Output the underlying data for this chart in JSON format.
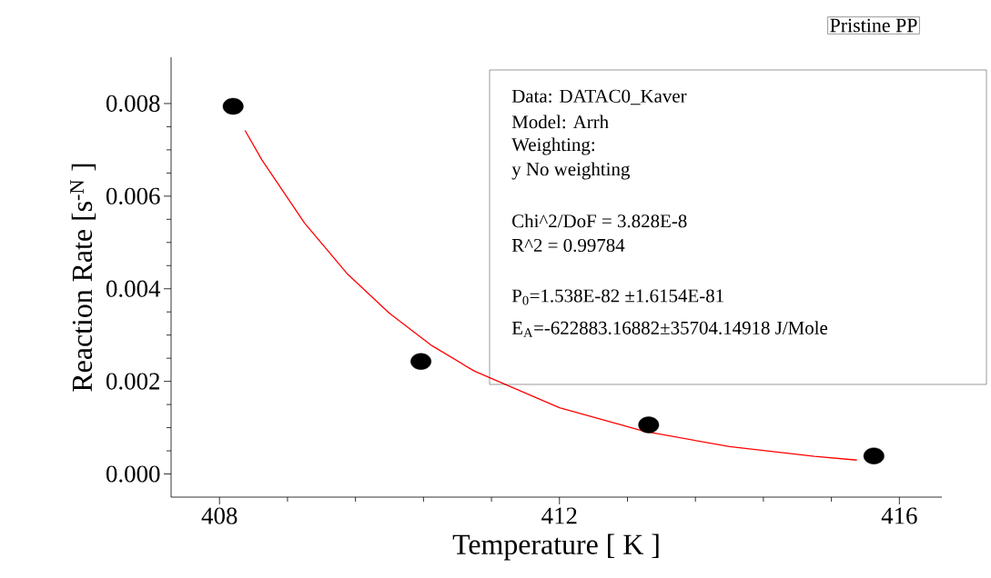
{
  "chart_data": {
    "type": "scatter",
    "xlabel": "Temperature [ K ]",
    "ylabel": "Reaction Rate [s$^{-N}$ ]",
    "xlim": [
      407.43,
      416.5
    ],
    "ylim": [
      -0.0005,
      0.009
    ],
    "xticks": [
      408,
      412,
      416
    ],
    "yticks": [
      {
        "value": 0,
        "label": "0.000"
      },
      {
        "value": 0.002,
        "label": "0.002"
      },
      {
        "value": 0.004,
        "label": "0.004"
      },
      {
        "value": 0.006,
        "label": "0.006"
      },
      {
        "value": 0.008,
        "label": "0.008"
      }
    ],
    "series": [
      {
        "color": "#000000",
        "marker": "circle",
        "x": [
          408.16,
          410.37,
          413.05,
          415.7
        ],
        "values": [
          0.00794,
          0.00243,
          0.00106,
          0.00039
        ]
      },
      {
        "type": "line",
        "color": "#ff0000",
        "marker": "none",
        "x": [
          408.3,
          408.5,
          409,
          409.5,
          410,
          410.5,
          411,
          412,
          413,
          414,
          415,
          415.5
        ],
        "values": [
          0.00742,
          0.00678,
          0.00542,
          0.00433,
          0.00347,
          0.00277,
          0.00222,
          0.00143,
          0.00092,
          0.00059,
          0.00038,
          0.0003
        ]
      }
    ],
    "annotations": [
      "Pristine PP",
      "Data: DATAC0_Kaver",
      "Model: Arrh",
      "Weighting:",
      "y No weighting",
      "Chi^2/DoF = 3.828E-8",
      "R^2 = 0.99784",
      "P$_{0}$=1.538E-82 ±1.6154E-81",
      "E$_{A}$=-622883.16882±35704.14918 J/Mole"
    ]
  }
}
